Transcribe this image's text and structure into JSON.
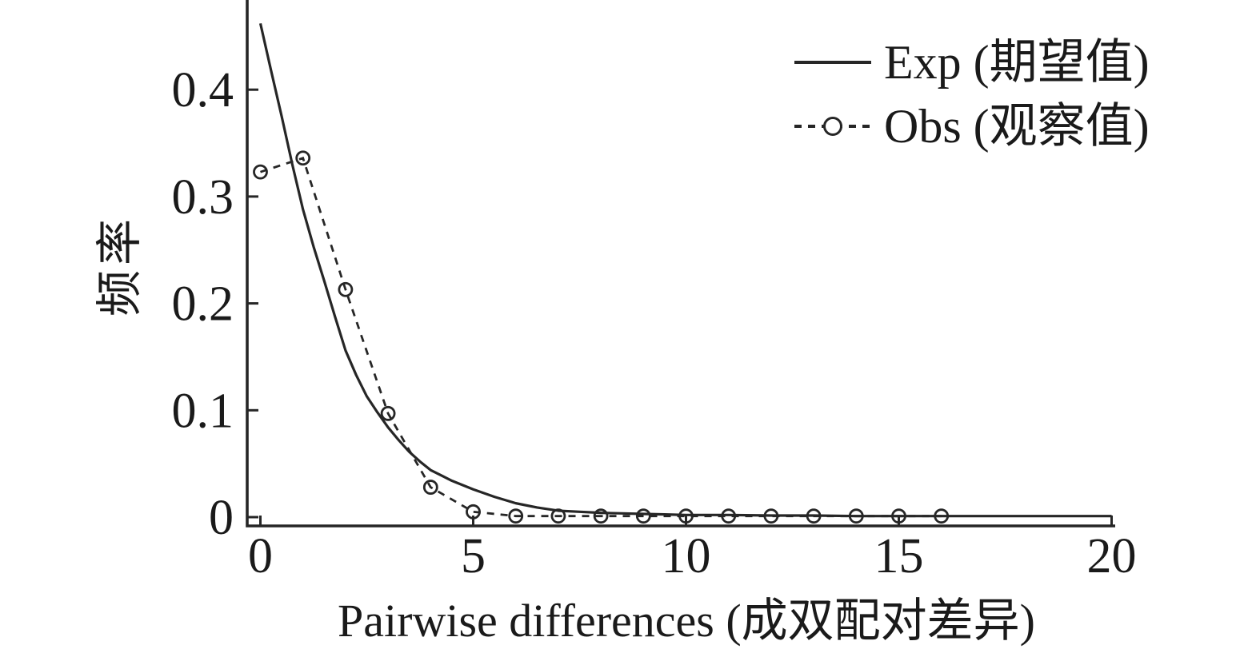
{
  "colors": {
    "line": "#262626",
    "text": "#1a1a1a",
    "background": "#ffffff"
  },
  "legend": {
    "position": "top-right",
    "items": [
      {
        "label": "Exp (期望值)",
        "series": "expected",
        "line_style": "solid",
        "marker": "none"
      },
      {
        "label": "Obs (观察值)",
        "series": "observed",
        "line_style": "dashed",
        "marker": "open-circle"
      }
    ]
  },
  "chart_data": {
    "type": "line",
    "title": "",
    "xlabel": "Pairwise differences (成双配对差异)",
    "ylabel": "频率",
    "xlim": [
      -0.3,
      20.1
    ],
    "ylim": [
      0,
      0.484
    ],
    "x_ticks": [
      0,
      5,
      10,
      15,
      20
    ],
    "x_tick_labels": [
      "0",
      "5",
      "10",
      "15",
      "20"
    ],
    "y_ticks": [
      0,
      0.1,
      0.2,
      0.3,
      0.4
    ],
    "y_tick_labels": [
      "0",
      "0.1",
      "0.2",
      "0.3",
      "0.4"
    ],
    "grid": false,
    "legend_position": "top-right",
    "series": [
      {
        "name": "Exp (期望值)",
        "line_style": "solid",
        "marker": "none",
        "x": [
          0,
          0.25,
          0.5,
          0.75,
          1,
          1.25,
          1.5,
          1.75,
          2,
          2.25,
          2.5,
          2.75,
          3,
          3.25,
          3.5,
          3.75,
          4,
          4.25,
          4.5,
          4.75,
          5,
          5.5,
          6,
          6.5,
          7,
          7.5,
          8,
          8.5,
          9,
          9.5,
          10,
          11,
          12,
          13,
          14,
          15,
          16,
          17,
          18,
          19,
          20
        ],
        "y": [
          0.462,
          0.418,
          0.375,
          0.33,
          0.288,
          0.253,
          0.221,
          0.188,
          0.156,
          0.133,
          0.113,
          0.098,
          0.084,
          0.072,
          0.061,
          0.052,
          0.044,
          0.039,
          0.034,
          0.03,
          0.026,
          0.019,
          0.013,
          0.009,
          0.006,
          0.005,
          0.004,
          0.0035,
          0.003,
          0.0025,
          0.002,
          0.002,
          0.0015,
          0.0015,
          0.001,
          0.001,
          0.001,
          0.001,
          0.001,
          0.001,
          0.001
        ]
      },
      {
        "name": "Obs (观察值)",
        "line_style": "dashed",
        "marker": "open-circle",
        "x": [
          0,
          1,
          2,
          3,
          4,
          5,
          6,
          7,
          8,
          9,
          10,
          11,
          12,
          13,
          14,
          15,
          16
        ],
        "y": [
          0.323,
          0.336,
          0.213,
          0.097,
          0.028,
          0.005,
          0.001,
          0.001,
          0.001,
          0.001,
          0.001,
          0.001,
          0.001,
          0.001,
          0.001,
          0.001,
          0.001
        ]
      }
    ]
  }
}
